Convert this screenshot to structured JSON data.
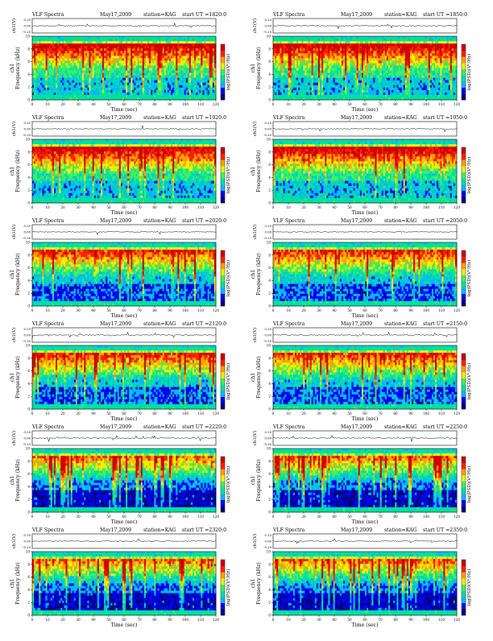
{
  "page": {
    "title_left": "VLF Spectra",
    "date": "May17,2009",
    "station_label": "station=KAG",
    "start_label": "start  UT  ="
  },
  "colors": {
    "background": "#ffffff",
    "colormap": [
      "#000080",
      "#0000ff",
      "#00b8ff",
      "#00e0a0",
      "#40f060",
      "#f0f000",
      "#ffa000",
      "#ff2000",
      "#d00000"
    ]
  },
  "chart_data": [
    {
      "id": "p1",
      "type": "heatmap",
      "start_ut": "1820:0",
      "title": "VLF Spectra",
      "date": "May17,2009",
      "station": "station=KAG",
      "xlabel": "Time (sec)",
      "ylabel": "Frequency (kHz)",
      "ylabel_top": "ch1",
      "volt_label": "ch1(V)",
      "volt_ticks": [
        "0.20",
        "0.00",
        "-0.20"
      ],
      "colorbar_label": "log(PSD)(V²/Hz)",
      "xlim": [
        0,
        120
      ],
      "ylim": [
        0,
        10
      ],
      "xticks": [
        0,
        10,
        20,
        30,
        40,
        50,
        60,
        70,
        80,
        90,
        100,
        110,
        120
      ],
      "yticks": [
        0,
        2,
        4,
        6,
        8,
        10
      ],
      "intensity": "high"
    },
    {
      "id": "p2",
      "type": "heatmap",
      "start_ut": "1850:0",
      "title": "VLF Spectra",
      "date": "May17,2009",
      "station": "station=KAG",
      "xlabel": "Time (sec)",
      "ylabel": "Frequency (kHz)",
      "ylabel_top": "ch1",
      "volt_label": "ch1(V)",
      "volt_ticks": [
        "0.20",
        "0.00",
        "-0.20"
      ],
      "colorbar_label": "log(PSD)(V²/Hz)",
      "xlim": [
        0,
        120
      ],
      "ylim": [
        0,
        10
      ],
      "xticks": [
        0,
        10,
        20,
        30,
        40,
        50,
        60,
        70,
        80,
        90,
        100,
        110,
        120
      ],
      "yticks": [
        0,
        2,
        4,
        6,
        8,
        10
      ],
      "intensity": "high"
    },
    {
      "id": "p3",
      "type": "heatmap",
      "start_ut": "1920:0",
      "title": "VLF Spectra",
      "date": "May17,2009",
      "station": "station=KAG",
      "xlabel": "Time (sec)",
      "ylabel": "Frequency (kHz)",
      "ylabel_top": "ch1",
      "volt_label": "ch1(V)",
      "volt_ticks": [
        "0.20",
        "0.00",
        "-0.20"
      ],
      "colorbar_label": "log(PSD)(V²/Hz)",
      "xlim": [
        0,
        120
      ],
      "ylim": [
        0,
        10
      ],
      "xticks": [
        0,
        10,
        20,
        30,
        40,
        50,
        60,
        70,
        80,
        90,
        100,
        110,
        120
      ],
      "yticks": [
        0,
        2,
        4,
        6,
        8,
        10
      ],
      "intensity": "high"
    },
    {
      "id": "p4",
      "type": "heatmap",
      "start_ut": "1950:0",
      "title": "VLF Spectra",
      "date": "May17,2009",
      "station": "station=KAG",
      "xlabel": "Time (sec)",
      "ylabel": "Frequency (kHz)",
      "ylabel_top": "ch1",
      "volt_label": "ch1(V)",
      "volt_ticks": [
        "0.20",
        "0.00",
        "-0.20"
      ],
      "colorbar_label": "log(PSD)(V²/Hz)",
      "xlim": [
        0,
        120
      ],
      "ylim": [
        0,
        10
      ],
      "xticks": [
        0,
        10,
        20,
        30,
        40,
        50,
        60,
        70,
        80,
        90,
        100,
        110,
        120
      ],
      "yticks": [
        0,
        2,
        4,
        6,
        8,
        10
      ],
      "intensity": "high"
    },
    {
      "id": "p5",
      "type": "heatmap",
      "start_ut": "2020:0",
      "title": "VLF Spectra",
      "date": "May17,2009",
      "station": "station=KAG",
      "xlabel": "Time (sec)",
      "ylabel": "Frequency (kHz)",
      "ylabel_top": "ch1",
      "volt_label": "ch1(V)",
      "volt_ticks": [
        "0.20",
        "0.00",
        "-0.20"
      ],
      "colorbar_label": "log(PSD)(V²/Hz)",
      "xlim": [
        0,
        120
      ],
      "ylim": [
        0,
        10
      ],
      "xticks": [
        0,
        10,
        20,
        30,
        40,
        50,
        60,
        70,
        80,
        90,
        100,
        110,
        120
      ],
      "yticks": [
        0,
        2,
        4,
        6,
        8,
        10
      ],
      "intensity": "medium"
    },
    {
      "id": "p6",
      "type": "heatmap",
      "start_ut": "2050:0",
      "title": "VLF Spectra",
      "date": "May17,2009",
      "station": "station=KAG",
      "xlabel": "Time (sec)",
      "ylabel": "Frequency (kHz)",
      "ylabel_top": "ch1",
      "volt_label": "ch1(V)",
      "volt_ticks": [
        "0.20",
        "0.00",
        "-0.20"
      ],
      "colorbar_label": "log(PSD)(V²/Hz)",
      "xlim": [
        0,
        120
      ],
      "ylim": [
        0,
        10
      ],
      "xticks": [
        0,
        10,
        20,
        30,
        40,
        50,
        60,
        70,
        80,
        90,
        100,
        110,
        120
      ],
      "yticks": [
        0,
        2,
        4,
        6,
        8,
        10
      ],
      "intensity": "medium"
    },
    {
      "id": "p7",
      "type": "heatmap",
      "start_ut": "2120:0",
      "title": "VLF Spectra",
      "date": "May17,2009",
      "station": "station=KAG",
      "xlabel": "Time (sec)",
      "ylabel": "Frequency (kHz)",
      "ylabel_top": "ch1",
      "volt_label": "ch1(V)",
      "volt_ticks": [
        "0.20",
        "0.00",
        "-0.20"
      ],
      "colorbar_label": "log(PSD)(V²/Hz)",
      "xlim": [
        0,
        120
      ],
      "ylim": [
        0,
        10
      ],
      "xticks": [
        0,
        10,
        20,
        30,
        40,
        50,
        60,
        70,
        80,
        90,
        100,
        110,
        120
      ],
      "yticks": [
        0,
        2,
        4,
        6,
        8,
        10
      ],
      "intensity": "medium"
    },
    {
      "id": "p8",
      "type": "heatmap",
      "start_ut": "2150:0",
      "title": "VLF Spectra",
      "date": "May17,2009",
      "station": "station=KAG",
      "xlabel": "Time (sec)",
      "ylabel": "Frequency (kHz)",
      "ylabel_top": "ch1",
      "volt_label": "ch1(V)",
      "volt_ticks": [
        "0.20",
        "0.00",
        "-0.20"
      ],
      "colorbar_label": "log(PSD)(V²/Hz)",
      "xlim": [
        0,
        120
      ],
      "ylim": [
        0,
        10
      ],
      "xticks": [
        0,
        10,
        20,
        30,
        40,
        50,
        60,
        70,
        80,
        90,
        100,
        110,
        120
      ],
      "yticks": [
        0,
        2,
        4,
        6,
        8,
        10
      ],
      "intensity": "medium"
    },
    {
      "id": "p9",
      "type": "heatmap",
      "start_ut": "2220:0",
      "title": "VLF Spectra",
      "date": "May17,2009",
      "station": "station=KAG",
      "xlabel": "Time (sec)",
      "ylabel": "Frequency (kHz)",
      "ylabel_top": "ch1",
      "volt_label": "ch1(V)",
      "volt_ticks": [
        "0.20",
        "0.00",
        "-0.20"
      ],
      "colorbar_label": "log(PSD)(V²/Hz)",
      "xlim": [
        0,
        120
      ],
      "ylim": [
        0,
        10
      ],
      "xticks": [
        0,
        10,
        20,
        30,
        40,
        50,
        60,
        70,
        80,
        90,
        100,
        110,
        120
      ],
      "yticks": [
        0,
        2,
        4,
        6,
        8,
        10
      ],
      "intensity": "low"
    },
    {
      "id": "p10",
      "type": "heatmap",
      "start_ut": "2250:0",
      "title": "VLF Spectra",
      "date": "May17,2009",
      "station": "station=KAG",
      "xlabel": "Time (sec)",
      "ylabel": "Frequency (kHz)",
      "ylabel_top": "ch1",
      "volt_label": "ch1(V)",
      "volt_ticks": [
        "0.20",
        "0.00",
        "-0.20"
      ],
      "colorbar_label": "log(PSD)(V²/Hz)",
      "xlim": [
        0,
        120
      ],
      "ylim": [
        0,
        10
      ],
      "xticks": [
        0,
        10,
        20,
        30,
        40,
        50,
        60,
        70,
        80,
        90,
        100,
        110,
        120
      ],
      "yticks": [
        0,
        2,
        4,
        6,
        8,
        10
      ],
      "intensity": "low"
    },
    {
      "id": "p11",
      "type": "heatmap",
      "start_ut": "2320:0",
      "title": "VLF Spectra",
      "date": "May17,2009",
      "station": "station=KAG",
      "xlabel": "Time (sec)",
      "ylabel": "Frequency (kHz)",
      "ylabel_top": "ch1",
      "volt_label": "ch1(V)",
      "volt_ticks": [
        "0.20",
        "0.00",
        "-0.20"
      ],
      "colorbar_label": "log(PSD)(V²/Hz)",
      "xlim": [
        0,
        120
      ],
      "ylim": [
        0,
        10
      ],
      "xticks": [
        0,
        10,
        20,
        30,
        40,
        50,
        60,
        70,
        80,
        90,
        100,
        110,
        120
      ],
      "yticks": [
        0,
        2,
        4,
        6,
        8,
        10
      ],
      "intensity": "low"
    },
    {
      "id": "p12",
      "type": "heatmap",
      "start_ut": "2350:0",
      "title": "VLF Spectra",
      "date": "May17,2009",
      "station": "station=KAG",
      "xlabel": "Time (sec)",
      "ylabel": "Frequency (kHz)",
      "ylabel_top": "ch1",
      "volt_label": "ch1(V)",
      "volt_ticks": [
        "0.20",
        "0.00",
        "-0.20"
      ],
      "colorbar_label": "log(PSD)(V²/Hz)",
      "xlim": [
        0,
        120
      ],
      "ylim": [
        0,
        10
      ],
      "xticks": [
        0,
        10,
        20,
        30,
        40,
        50,
        60,
        70,
        80,
        90,
        100,
        110,
        120
      ],
      "yticks": [
        0,
        2,
        4,
        6,
        8,
        10
      ],
      "intensity": "low"
    }
  ]
}
